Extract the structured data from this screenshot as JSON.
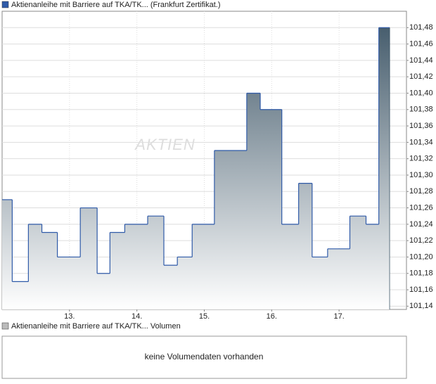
{
  "chart_data": {
    "type": "step-area",
    "title": "Aktienanleihe mit Barriere auf TKA/TK... (Frankfurt Zertifikat.)",
    "watermark": "AKTIEN",
    "x": [
      12.0,
      12.15,
      12.39,
      12.59,
      12.82,
      13.16,
      13.41,
      13.6,
      13.82,
      14.16,
      14.4,
      14.6,
      14.82,
      15.15,
      15.63,
      15.83,
      16.15,
      16.4,
      16.6,
      16.83,
      17.16,
      17.4,
      17.59,
      17.75
    ],
    "values": [
      101.27,
      101.17,
      101.24,
      101.23,
      101.2,
      101.26,
      101.18,
      101.23,
      101.24,
      101.25,
      101.19,
      101.2,
      101.24,
      101.33,
      101.4,
      101.38,
      101.24,
      101.29,
      101.2,
      101.21,
      101.25,
      101.24,
      101.48,
      101.48
    ],
    "color": "#2f5aa8",
    "xlim": [
      12.0,
      18.0
    ],
    "xticks": [
      {
        "value": 13,
        "label": "13."
      },
      {
        "value": 14,
        "label": "14."
      },
      {
        "value": 15,
        "label": "15."
      },
      {
        "value": 16,
        "label": "16."
      },
      {
        "value": 17,
        "label": "17."
      }
    ],
    "ylim": [
      101.136,
      101.5
    ],
    "yticks": [
      {
        "value": 101.14,
        "label": "101,14"
      },
      {
        "value": 101.16,
        "label": "101,16"
      },
      {
        "value": 101.18,
        "label": "101,18"
      },
      {
        "value": 101.2,
        "label": "101,20"
      },
      {
        "value": 101.22,
        "label": "101,22"
      },
      {
        "value": 101.24,
        "label": "101,24"
      },
      {
        "value": 101.26,
        "label": "101,26"
      },
      {
        "value": 101.28,
        "label": "101,28"
      },
      {
        "value": 101.3,
        "label": "101,30"
      },
      {
        "value": 101.32,
        "label": "101,32"
      },
      {
        "value": 101.34,
        "label": "101,34"
      },
      {
        "value": 101.36,
        "label": "101,36"
      },
      {
        "value": 101.38,
        "label": "101,38"
      },
      {
        "value": 101.4,
        "label": "101,40"
      },
      {
        "value": 101.42,
        "label": "101,42"
      },
      {
        "value": 101.44,
        "label": "101,44"
      },
      {
        "value": 101.46,
        "label": "101,46"
      },
      {
        "value": 101.48,
        "label": "101,48"
      }
    ],
    "grid": true,
    "volume": {
      "legend": "Aktienanleihe mit Barriere auf TKA/TK... Volumen",
      "message": "keine Volumendaten vorhanden"
    }
  }
}
